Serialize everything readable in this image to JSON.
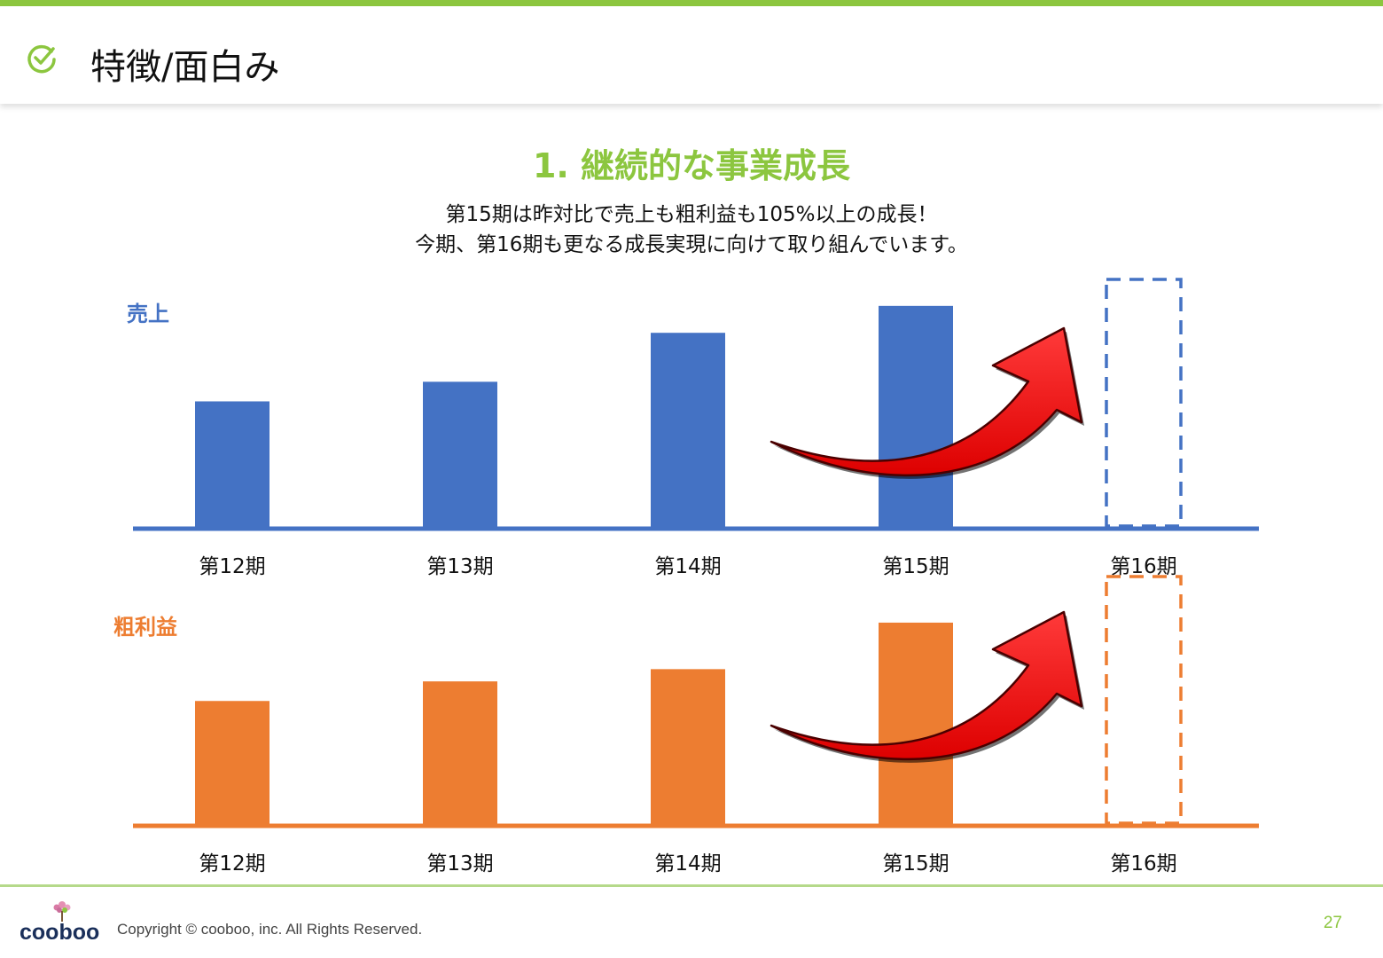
{
  "header": {
    "title": "特徴/面白み",
    "icon": "check-circle-icon",
    "accent_color": "#8cc63f"
  },
  "section": {
    "title": "1. 継続的な事業成長",
    "subtitle_line1": "第15期は昨対比で売上も粗利益も105%以上の成長！",
    "subtitle_line2": "今期、第16期も更なる成長実現に向けて取り組んでいます。"
  },
  "chart_data": [
    {
      "type": "bar",
      "title": "売上",
      "color": "#4472c4",
      "categories": [
        "第12期",
        "第13期",
        "第14期",
        "第15期",
        "第16期"
      ],
      "values": [
        52,
        60,
        80,
        91,
        null
      ],
      "projected_category": "第16期",
      "projected_style": "dashed-outline",
      "growth_arrow_color": "#dd0000",
      "ylim": [
        0,
        100
      ],
      "grid": false
    },
    {
      "type": "bar",
      "title": "粗利益",
      "color": "#ed7d31",
      "categories": [
        "第12期",
        "第13期",
        "第14期",
        "第15期",
        "第16期"
      ],
      "values": [
        51,
        59,
        64,
        83,
        null
      ],
      "projected_category": "第16期",
      "projected_style": "dashed-outline",
      "growth_arrow_color": "#dd0000",
      "ylim": [
        0,
        100
      ],
      "grid": false
    }
  ],
  "footer": {
    "logo_text": "cooboo",
    "copyright": "Copyright ©  cooboo, inc. All Rights Reserved.",
    "page_number": "27"
  }
}
